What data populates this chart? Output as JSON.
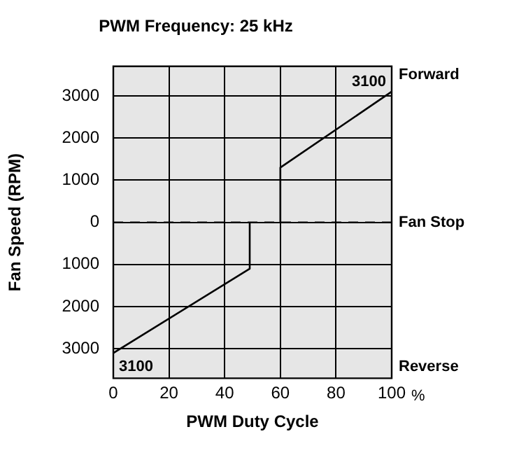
{
  "chart_data": {
    "type": "line",
    "title": "PWM Frequency: 25 kHz",
    "xlabel": "PWM Duty Cycle",
    "ylabel": "Fan Speed (RPM)",
    "xlim": [
      0,
      100
    ],
    "xticks": [
      0,
      20,
      40,
      60,
      80,
      100
    ],
    "ylim": [
      -3700,
      3700
    ],
    "yticks": [
      {
        "value": -3000,
        "label": "3000"
      },
      {
        "value": -2000,
        "label": "2000"
      },
      {
        "value": -1000,
        "label": "1000"
      },
      0,
      1000,
      2000,
      3000
    ],
    "series": [
      {
        "color": "#000000",
        "x": [
          0,
          49,
          49,
          55,
          60,
          60,
          100
        ],
        "values": [
          -3100,
          -1100,
          0,
          null,
          0,
          1300,
          3100
        ]
      }
    ],
    "ref_lines": [
      {
        "axis": "y",
        "value": 0,
        "label": "Fan Stop",
        "line_style": "dashed",
        "color": "#000000"
      }
    ],
    "annotations": [
      {
        "text": "3100",
        "x": 100,
        "y": 3100
      },
      {
        "text": "3100",
        "x": 0,
        "y": -3100
      },
      "Forward",
      "Reverse",
      "%"
    ],
    "grid": true,
    "legend": false,
    "marker": "none",
    "line_style": "solid"
  }
}
